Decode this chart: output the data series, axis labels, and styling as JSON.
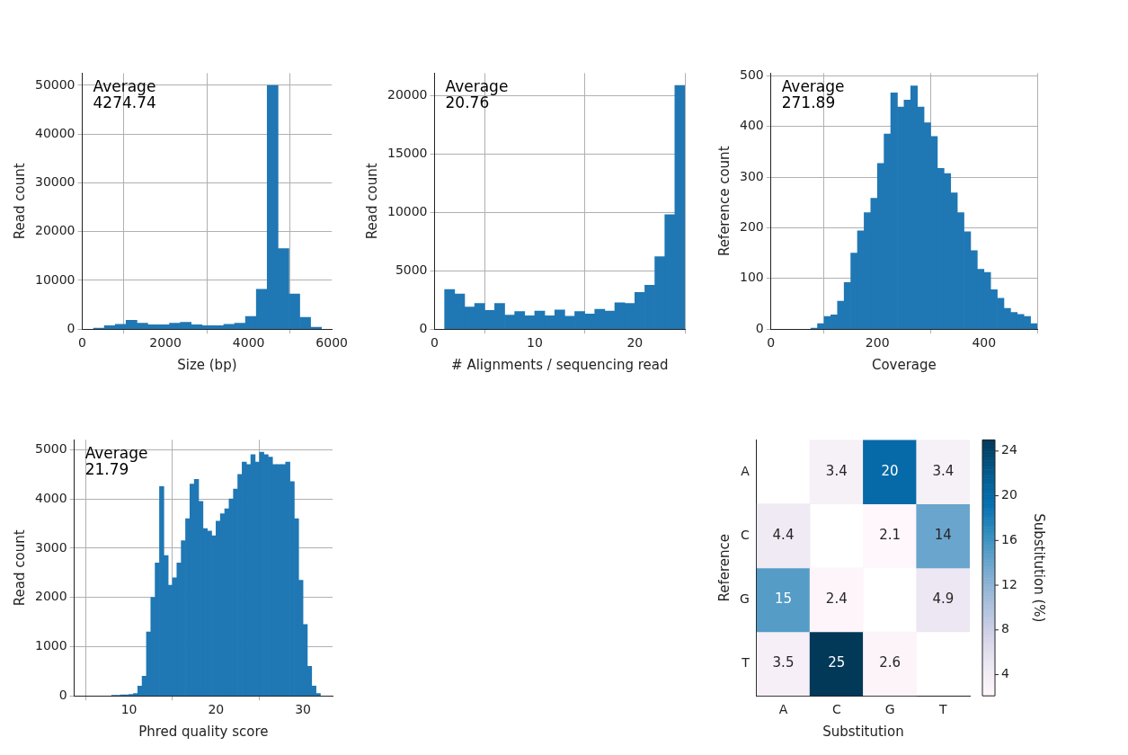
{
  "chart_data": [
    {
      "type": "histogram",
      "xlabel": "Size (bp)",
      "ylabel": "Read count",
      "annotations": [
        "Average\n4274.74"
      ],
      "color": "#1f77b4",
      "grid": true,
      "bins": [
        270,
        531,
        792,
        1053,
        1314,
        1575,
        1836,
        2097,
        2358,
        2619,
        2880,
        3141,
        3402,
        3663,
        3924,
        4185,
        4446,
        4707,
        4968,
        5229,
        5490,
        5751
      ],
      "values": [
        200,
        700,
        1000,
        1800,
        1200,
        900,
        900,
        1200,
        1400,
        900,
        700,
        700,
        1000,
        1200,
        2600,
        8200,
        50000,
        16500,
        7200,
        2400,
        400
      ],
      "xlim": [
        0,
        6000
      ],
      "xticks": [
        0,
        2000,
        4000,
        6000
      ],
      "ylim": [
        0,
        52500
      ],
      "yticks": [
        0,
        10000,
        20000,
        30000,
        40000,
        50000
      ]
    },
    {
      "type": "histogram",
      "xlabel": "# Alignments / sequencing read",
      "ylabel": "Read count",
      "annotations": [
        "Average\n20.76"
      ],
      "color": "#1f77b4",
      "grid": true,
      "bins": [
        1,
        2,
        3,
        4,
        5,
        6,
        7,
        8,
        9,
        10,
        11,
        12,
        13,
        14,
        15,
        16,
        17,
        18,
        19,
        20,
        21,
        22,
        23,
        24,
        25
      ],
      "values": [
        3400,
        3000,
        1900,
        2200,
        1600,
        2200,
        1200,
        1500,
        1150,
        1550,
        1150,
        1650,
        1100,
        1500,
        1300,
        1700,
        1550,
        2250,
        2200,
        3150,
        3750,
        6200,
        9800,
        20850
      ],
      "xlim": [
        0,
        25
      ],
      "xticks": [
        0,
        10,
        20
      ],
      "ylim": [
        0,
        21900
      ],
      "yticks": [
        0,
        5000,
        10000,
        15000,
        20000
      ]
    },
    {
      "type": "histogram",
      "xlabel": "Coverage",
      "ylabel": "Reference count",
      "annotations": [
        "Average\n271.89"
      ],
      "color": "#1f77b4",
      "grid": true,
      "bins": [
        75,
        87.5,
        100,
        112.5,
        125,
        137.5,
        150,
        162.5,
        175,
        187.5,
        200,
        212.5,
        225,
        237.5,
        250,
        262.5,
        275,
        287.5,
        300,
        312.5,
        325,
        337.5,
        350,
        362.5,
        375,
        387.5,
        400,
        412.5,
        425,
        437.5,
        450,
        462.5,
        475,
        487.5,
        500
      ],
      "values": [
        2,
        11,
        25,
        28,
        55,
        92,
        150,
        194,
        230,
        258,
        327,
        385,
        466,
        438,
        452,
        480,
        438,
        407,
        380,
        317,
        307,
        269,
        230,
        192,
        155,
        118,
        112,
        78,
        61,
        41,
        33,
        29,
        25,
        11
      ],
      "xlim": [
        0,
        500
      ],
      "xticks": [
        0,
        200,
        400
      ],
      "ylim": [
        0,
        505
      ],
      "yticks": [
        0,
        100,
        200,
        300,
        400,
        500
      ]
    },
    {
      "type": "histogram",
      "xlabel": "Phred quality score",
      "ylabel": "Read count",
      "annotations": [
        "Average\n21.79"
      ],
      "color": "#1f77b4",
      "grid": true,
      "bins": [
        8,
        8.5,
        9,
        9.5,
        10,
        10.5,
        11,
        11.5,
        12,
        12.5,
        13,
        13.5,
        14,
        14.5,
        15,
        15.5,
        16,
        16.5,
        17,
        17.5,
        18,
        18.5,
        19,
        19.5,
        20,
        20.5,
        21,
        21.5,
        22,
        22.5,
        23,
        23.5,
        24,
        24.5,
        25,
        25.5,
        26,
        26.5,
        27,
        27.5,
        28,
        28.5,
        29,
        29.5,
        30,
        30.5,
        31,
        31.5,
        32
      ],
      "values": [
        10,
        10,
        20,
        20,
        30,
        50,
        200,
        400,
        1300,
        2000,
        2700,
        4250,
        2850,
        2250,
        2400,
        2700,
        3150,
        3600,
        4300,
        4400,
        3950,
        3400,
        3350,
        3250,
        3550,
        3700,
        3800,
        4000,
        4200,
        4500,
        4750,
        4700,
        4900,
        4750,
        4950,
        4900,
        4850,
        4700,
        4700,
        4700,
        4750,
        4350,
        3600,
        2350,
        1450,
        600,
        200,
        50
      ],
      "xlim": [
        3.7,
        33.4
      ],
      "xticks": [
        10,
        20,
        30
      ],
      "ylim": [
        0,
        5200
      ],
      "yticks": [
        0,
        1000,
        2000,
        3000,
        4000,
        5000
      ]
    },
    {
      "type": "heatmap",
      "xlabel": "Substitution",
      "ylabel": "Reference",
      "clabel": "Substitution (%)",
      "categories": [
        "A",
        "C",
        "G",
        "T"
      ],
      "y_categories": [
        "A",
        "C",
        "G",
        "T"
      ],
      "cells": [
        [
          null,
          3.4,
          20,
          3.4
        ],
        [
          4.4,
          null,
          2.1,
          14
        ],
        [
          15,
          2.4,
          null,
          4.9
        ],
        [
          3.5,
          25,
          2.6,
          null
        ]
      ],
      "data_labels": true,
      "clim": [
        2.1,
        25
      ],
      "cticks": [
        4,
        8,
        12,
        16,
        20,
        24
      ]
    }
  ]
}
